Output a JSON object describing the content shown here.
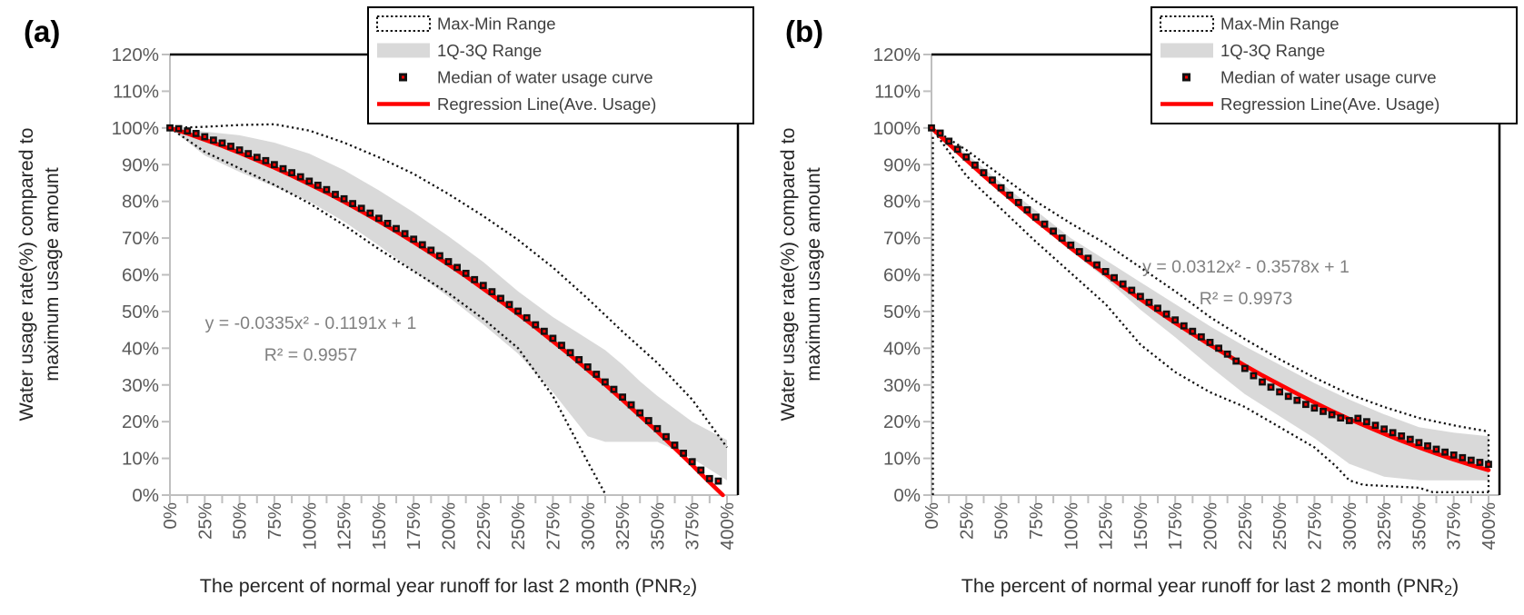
{
  "colors": {
    "regression": "#ff0000",
    "band": "#d9d9d9",
    "dotted": "#111111",
    "marker_outer": "#111111",
    "marker_inner": "#ff0000",
    "axis": "#bfbfbf",
    "plot_border": "#000000",
    "tick_label": "#595959",
    "axis_title": "#262626",
    "equation_text": "#808080",
    "legend_text": "#3f3f3f",
    "panel_label": "#000000",
    "background": "#ffffff"
  },
  "legend": {
    "items": [
      {
        "key": "maxmin",
        "label": "Max-Min Range"
      },
      {
        "key": "band",
        "label": "1Q-3Q Range"
      },
      {
        "key": "median",
        "label": "Median of water usage curve"
      },
      {
        "key": "regression",
        "label": "Regression Line(Ave. Usage)"
      }
    ]
  },
  "axes": {
    "x_title_pre": "The percent of normal year runoff for last 2 month (PNR",
    "x_title_sub": "2",
    "x_title_post": ")",
    "y_title_line1": "Water usage rate(%) compared to",
    "y_title_line2": "maximum usage amount",
    "x_tick_labels": [
      "0%",
      "25%",
      "50%",
      "75%",
      "100%",
      "125%",
      "150%",
      "175%",
      "200%",
      "225%",
      "250%",
      "275%",
      "300%",
      "325%",
      "350%",
      "375%",
      "400%"
    ],
    "y_tick_labels": [
      "0%",
      "10%",
      "20%",
      "30%",
      "40%",
      "50%",
      "60%",
      "70%",
      "80%",
      "90%",
      "100%",
      "110%",
      "120%"
    ]
  },
  "chart_data": [
    {
      "type": "line",
      "panel_label": "(a)",
      "xlim": [
        0,
        400
      ],
      "ylim": [
        0,
        120
      ],
      "x_major_tick": 25,
      "x_minor_tick": 12.5,
      "y_tick": 10,
      "grid": false,
      "legend_position": "top-right",
      "equation": "y = -0.0335x² - 0.1191x + 1",
      "r_squared": "R² = 0.9957",
      "series": [
        {
          "name": "Max of water usage (Max-Min Range upper)",
          "style": "dotted",
          "x": [
            0,
            25,
            50,
            75,
            100,
            125,
            150,
            175,
            200,
            225,
            250,
            275,
            300,
            325,
            350,
            375,
            400
          ],
          "y": [
            100,
            100.3,
            100.8,
            101,
            99.3,
            96,
            92,
            87.5,
            82,
            76,
            69.5,
            62,
            53.5,
            44.5,
            36,
            26,
            13
          ]
        },
        {
          "name": "Min of water usage (Max-Min Range lower)",
          "style": "dotted",
          "x": [
            0,
            25,
            50,
            75,
            100,
            125,
            150,
            175,
            200,
            225,
            250,
            275,
            300,
            313
          ],
          "y": [
            100,
            93.5,
            89,
            84.5,
            79.5,
            73.5,
            67,
            61,
            55,
            48,
            40,
            27,
            9,
            0
          ]
        },
        {
          "name": "1Q-3Q Range",
          "style": "band",
          "x": [
            0,
            25,
            50,
            75,
            100,
            125,
            150,
            175,
            200,
            225,
            250,
            275,
            300,
            312.5,
            325,
            337.5,
            350,
            375,
            400
          ],
          "upper": [
            100,
            99,
            98,
            96,
            93,
            88.5,
            83,
            77,
            70.5,
            63.5,
            55.5,
            48.5,
            42.5,
            39.5,
            35.5,
            31,
            27,
            20,
            15
          ],
          "lower": [
            100,
            92.5,
            88,
            84,
            80,
            74.5,
            68,
            61,
            54,
            46.5,
            38.5,
            28,
            16,
            14.5,
            14.5,
            14.5,
            14.5,
            10,
            4
          ]
        },
        {
          "name": "Median of water usage curve",
          "style": "markers",
          "x0": 0,
          "x_step": 6.25,
          "y": [
            100,
            99.8,
            99.2,
            98.5,
            97.6,
            96.7,
            95.9,
            95,
            94,
            93,
            92,
            91.1,
            90,
            88.9,
            87.8,
            86.7,
            85.5,
            84.4,
            83.2,
            81.9,
            80.7,
            79.4,
            78.1,
            76.8,
            75.4,
            74,
            72.6,
            71.2,
            69.7,
            68.2,
            66.7,
            65.2,
            63.6,
            62,
            60.4,
            58.7,
            57.1,
            55.4,
            53.6,
            51.9,
            50.1,
            48.3,
            46.4,
            44.6,
            42.7,
            40.8,
            38.8,
            36.9,
            34.9,
            32.9,
            30.8,
            28.8,
            26.7,
            24.6,
            22.4,
            20.3,
            18.1,
            15.9,
            13.6,
            11.4,
            9.1,
            6.8,
            4.5,
            3.8
          ]
        },
        {
          "name": "Regression Line(Ave. Usage)",
          "style": "line",
          "x": [
            0,
            12.5,
            25,
            37.5,
            50,
            62.5,
            75,
            87.5,
            100,
            112.5,
            125,
            137.5,
            150,
            162.5,
            175,
            187.5,
            200,
            212.5,
            225,
            237.5,
            250,
            262.5,
            275,
            287.5,
            300,
            312.5,
            325,
            337.5,
            350,
            362.5,
            375,
            387.5,
            397
          ],
          "y": [
            100,
            98.5,
            96.8,
            95.1,
            93.2,
            91.2,
            89.2,
            87,
            84.7,
            82.4,
            79.9,
            77.3,
            74.6,
            71.8,
            68.9,
            65.9,
            62.8,
            59.6,
            56.2,
            52.8,
            49.3,
            45.7,
            41.9,
            38.1,
            34.1,
            30.1,
            25.9,
            21.6,
            17.3,
            12.8,
            8.2,
            3.5,
            0
          ]
        }
      ],
      "range_edges": []
    },
    {
      "type": "line",
      "panel_label": "(b)",
      "xlim": [
        0,
        400
      ],
      "ylim": [
        0,
        120
      ],
      "x_major_tick": 25,
      "x_minor_tick": 12.5,
      "y_tick": 10,
      "grid": false,
      "legend_position": "top-right",
      "equation": "y = 0.0312x² - 0.3578x + 1",
      "r_squared": "R² = 0.9973",
      "series": [
        {
          "name": "Max of water usage (Max-Min Range upper)",
          "style": "dotted",
          "x": [
            0,
            25,
            50,
            75,
            100,
            125,
            150,
            175,
            200,
            225,
            250,
            275,
            300,
            325,
            350,
            375,
            400
          ],
          "y": [
            100,
            94,
            87,
            80,
            74,
            68.5,
            62,
            55.5,
            48.5,
            42.5,
            37,
            32,
            27.5,
            24,
            21,
            19,
            17.3
          ]
        },
        {
          "name": "Min of water usage (Max-Min Range lower)",
          "style": "dotted",
          "x": [
            0,
            25,
            50,
            75,
            100,
            125,
            150,
            175,
            200,
            225,
            250,
            275,
            290,
            300,
            310,
            325,
            350,
            360,
            400
          ],
          "y": [
            100,
            87,
            78,
            69,
            60.5,
            52,
            41,
            33.5,
            28,
            24,
            18.5,
            13,
            8,
            4,
            2.8,
            2.5,
            2,
            0.8,
            0.8
          ]
        },
        {
          "name": "1Q-3Q Range",
          "style": "band",
          "x": [
            0,
            25,
            50,
            75,
            100,
            125,
            150,
            175,
            200,
            225,
            250,
            275,
            300,
            325,
            350,
            375,
            400
          ],
          "upper": [
            100,
            93,
            85,
            77.5,
            70,
            64,
            58,
            52,
            46,
            40.5,
            35.5,
            30.5,
            26,
            22,
            18.5,
            17,
            16
          ],
          "lower": [
            100,
            91,
            82.5,
            74.5,
            66.5,
            59,
            50.5,
            43,
            35,
            27.5,
            21.5,
            15.5,
            8.5,
            5,
            4,
            4,
            4
          ]
        },
        {
          "name": "Median of water usage curve",
          "style": "markers",
          "x0": 0,
          "x_step": 6.25,
          "y": [
            100,
            98.6,
            96.4,
            94.2,
            92.1,
            89.9,
            87.8,
            85.8,
            83.7,
            81.7,
            79.7,
            77.7,
            75.7,
            73.8,
            71.9,
            70,
            68.1,
            66.3,
            64.5,
            62.7,
            60.9,
            59.2,
            57.5,
            55.8,
            54.1,
            52.5,
            50.9,
            49.3,
            47.7,
            46.1,
            44.6,
            43.1,
            41.6,
            40,
            38.4,
            36.5,
            34.5,
            32.5,
            30.8,
            29.4,
            28.1,
            26.9,
            25.8,
            24.7,
            23.7,
            22.8,
            21.9,
            21,
            20.3,
            20.9,
            20,
            19,
            18,
            17,
            16.1,
            15.2,
            14.3,
            13.4,
            12.5,
            11.7,
            10.9,
            10.2,
            9.5,
            8.9,
            8.4
          ]
        },
        {
          "name": "Regression Line(Ave. Usage)",
          "style": "line",
          "x": [
            0,
            12.5,
            25,
            37.5,
            50,
            62.5,
            75,
            87.5,
            100,
            112.5,
            125,
            137.5,
            150,
            162.5,
            175,
            187.5,
            200,
            212.5,
            225,
            237.5,
            250,
            262.5,
            275,
            287.5,
            300,
            312.5,
            325,
            337.5,
            350,
            362.5,
            375,
            387.5,
            400
          ],
          "y": [
            100,
            95.6,
            91.3,
            87,
            82.9,
            78.9,
            74.9,
            71.1,
            67.3,
            63.7,
            60.2,
            56.7,
            53.4,
            50.1,
            46.9,
            43.9,
            40.9,
            38.1,
            35.3,
            32.6,
            30.1,
            27.6,
            25.2,
            22.9,
            20.7,
            18.7,
            16.7,
            14.8,
            13,
            11.3,
            9.7,
            8.2,
            6.8
          ]
        }
      ],
      "range_edges": [
        {
          "x": 1,
          "y1": 0,
          "y2": 98
        },
        {
          "x": 400,
          "y1": 0.8,
          "y2": 17.3
        }
      ]
    }
  ]
}
